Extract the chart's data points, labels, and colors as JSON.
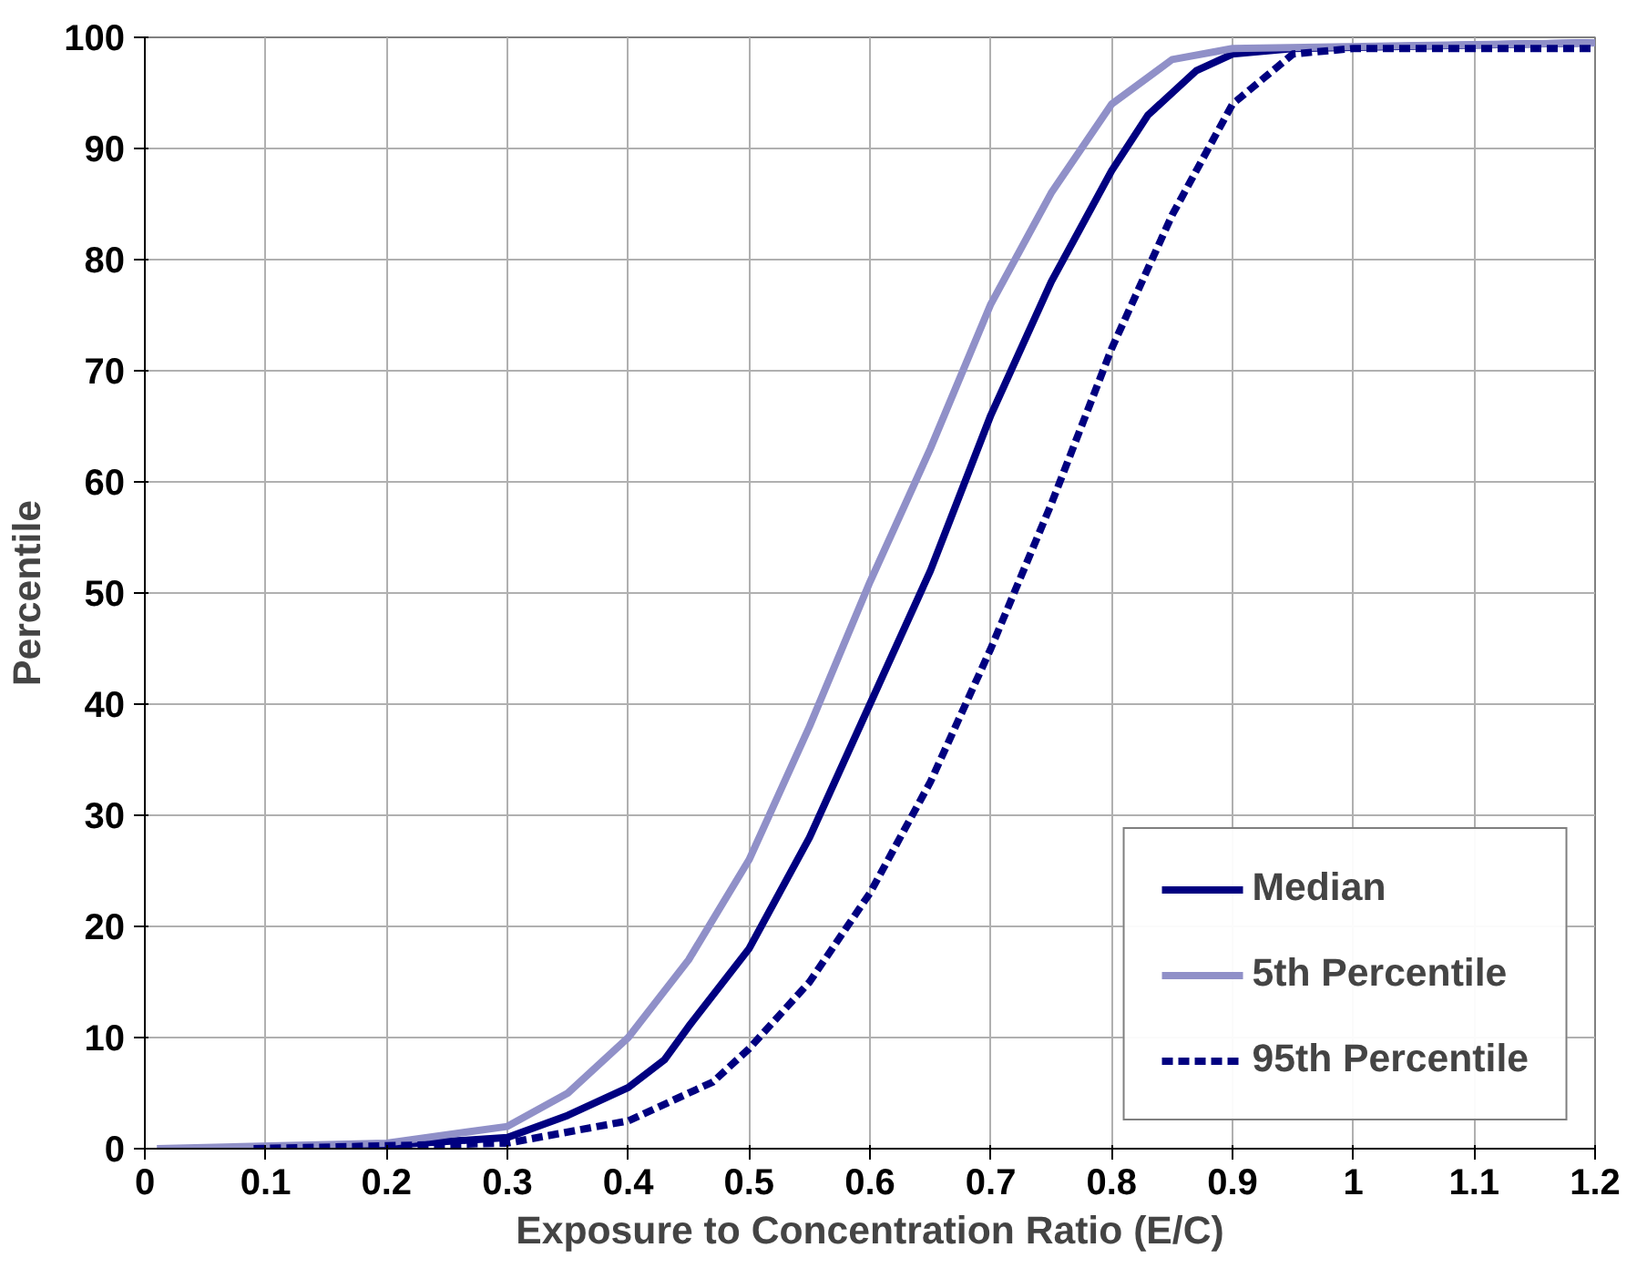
{
  "chart_data": {
    "type": "line",
    "xlabel": "Exposure to Concentration Ratio (E/C)",
    "ylabel": "Percentile",
    "xlim": [
      0,
      1.2
    ],
    "ylim": [
      0,
      100
    ],
    "xticks": [
      0,
      0.1,
      0.2,
      0.3,
      0.4,
      0.5,
      0.6,
      0.7,
      0.8,
      0.9,
      1,
      1.1,
      1.2
    ],
    "yticks": [
      0,
      10,
      20,
      30,
      40,
      50,
      60,
      70,
      80,
      90,
      100
    ],
    "grid": true,
    "legend": "bottom right",
    "marker": "none",
    "line_style": "solid",
    "series": [
      {
        "name": "Median",
        "color": "#000080",
        "x": [
          0.09,
          0.2,
          0.3,
          0.35,
          0.4,
          0.43,
          0.45,
          0.5,
          0.55,
          0.6,
          0.65,
          0.7,
          0.75,
          0.8,
          0.83,
          0.87,
          0.9,
          0.95,
          1.2
        ],
        "values": [
          0,
          0.3,
          1,
          3,
          5.5,
          8,
          11,
          18,
          28,
          40,
          52,
          66,
          78,
          88,
          93,
          97,
          98.5,
          99,
          99.5
        ]
      },
      {
        "name": "5th Percentile",
        "color": "#9090c8",
        "x": [
          0.01,
          0.2,
          0.3,
          0.35,
          0.4,
          0.45,
          0.5,
          0.55,
          0.6,
          0.65,
          0.7,
          0.75,
          0.8,
          0.85,
          0.9,
          1.2
        ],
        "values": [
          0,
          0.5,
          2,
          5,
          10,
          17,
          26,
          38,
          51,
          63,
          76,
          86,
          94,
          98,
          99,
          99.5
        ]
      },
      {
        "name": "95th Percentile",
        "color": "#000080",
        "line_style": "dashed",
        "x": [
          0.09,
          0.3,
          0.4,
          0.47,
          0.5,
          0.55,
          0.6,
          0.65,
          0.7,
          0.75,
          0.8,
          0.85,
          0.9,
          0.95,
          1.0,
          1.2
        ],
        "values": [
          0,
          0.5,
          2.5,
          6,
          9,
          15,
          23,
          33,
          45,
          58,
          72,
          84,
          94,
          98.5,
          99,
          99
        ]
      }
    ]
  }
}
